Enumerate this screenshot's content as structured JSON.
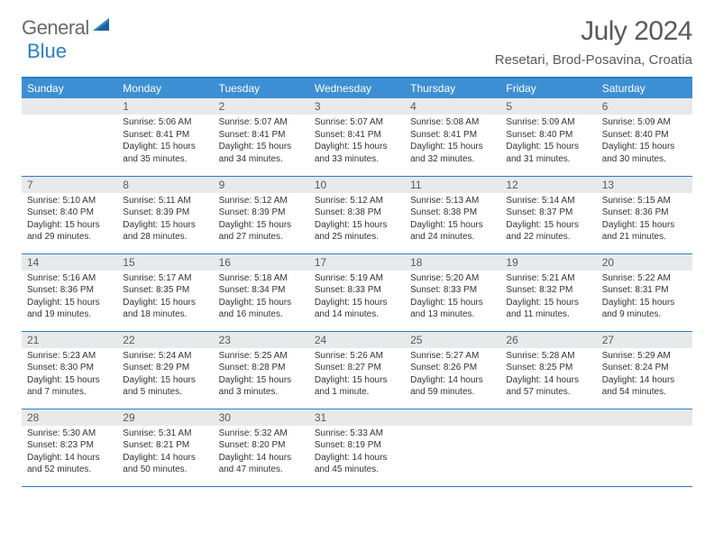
{
  "logo": {
    "gray": "General",
    "blue": "Blue"
  },
  "title": "July 2024",
  "location": "Resetari, Brod-Posavina, Croatia",
  "colors": {
    "header_bg": "#3d8fd4",
    "accent": "#2a7fc9",
    "daynum_bg": "#e8e9ea",
    "text": "#333333",
    "title_text": "#5a5a5a"
  },
  "day_names": [
    "Sunday",
    "Monday",
    "Tuesday",
    "Wednesday",
    "Thursday",
    "Friday",
    "Saturday"
  ],
  "weeks": [
    [
      {
        "n": "",
        "sr": "",
        "ss": "",
        "dl": ""
      },
      {
        "n": "1",
        "sr": "Sunrise: 5:06 AM",
        "ss": "Sunset: 8:41 PM",
        "dl": "Daylight: 15 hours and 35 minutes."
      },
      {
        "n": "2",
        "sr": "Sunrise: 5:07 AM",
        "ss": "Sunset: 8:41 PM",
        "dl": "Daylight: 15 hours and 34 minutes."
      },
      {
        "n": "3",
        "sr": "Sunrise: 5:07 AM",
        "ss": "Sunset: 8:41 PM",
        "dl": "Daylight: 15 hours and 33 minutes."
      },
      {
        "n": "4",
        "sr": "Sunrise: 5:08 AM",
        "ss": "Sunset: 8:41 PM",
        "dl": "Daylight: 15 hours and 32 minutes."
      },
      {
        "n": "5",
        "sr": "Sunrise: 5:09 AM",
        "ss": "Sunset: 8:40 PM",
        "dl": "Daylight: 15 hours and 31 minutes."
      },
      {
        "n": "6",
        "sr": "Sunrise: 5:09 AM",
        "ss": "Sunset: 8:40 PM",
        "dl": "Daylight: 15 hours and 30 minutes."
      }
    ],
    [
      {
        "n": "7",
        "sr": "Sunrise: 5:10 AM",
        "ss": "Sunset: 8:40 PM",
        "dl": "Daylight: 15 hours and 29 minutes."
      },
      {
        "n": "8",
        "sr": "Sunrise: 5:11 AM",
        "ss": "Sunset: 8:39 PM",
        "dl": "Daylight: 15 hours and 28 minutes."
      },
      {
        "n": "9",
        "sr": "Sunrise: 5:12 AM",
        "ss": "Sunset: 8:39 PM",
        "dl": "Daylight: 15 hours and 27 minutes."
      },
      {
        "n": "10",
        "sr": "Sunrise: 5:12 AM",
        "ss": "Sunset: 8:38 PM",
        "dl": "Daylight: 15 hours and 25 minutes."
      },
      {
        "n": "11",
        "sr": "Sunrise: 5:13 AM",
        "ss": "Sunset: 8:38 PM",
        "dl": "Daylight: 15 hours and 24 minutes."
      },
      {
        "n": "12",
        "sr": "Sunrise: 5:14 AM",
        "ss": "Sunset: 8:37 PM",
        "dl": "Daylight: 15 hours and 22 minutes."
      },
      {
        "n": "13",
        "sr": "Sunrise: 5:15 AM",
        "ss": "Sunset: 8:36 PM",
        "dl": "Daylight: 15 hours and 21 minutes."
      }
    ],
    [
      {
        "n": "14",
        "sr": "Sunrise: 5:16 AM",
        "ss": "Sunset: 8:36 PM",
        "dl": "Daylight: 15 hours and 19 minutes."
      },
      {
        "n": "15",
        "sr": "Sunrise: 5:17 AM",
        "ss": "Sunset: 8:35 PM",
        "dl": "Daylight: 15 hours and 18 minutes."
      },
      {
        "n": "16",
        "sr": "Sunrise: 5:18 AM",
        "ss": "Sunset: 8:34 PM",
        "dl": "Daylight: 15 hours and 16 minutes."
      },
      {
        "n": "17",
        "sr": "Sunrise: 5:19 AM",
        "ss": "Sunset: 8:33 PM",
        "dl": "Daylight: 15 hours and 14 minutes."
      },
      {
        "n": "18",
        "sr": "Sunrise: 5:20 AM",
        "ss": "Sunset: 8:33 PM",
        "dl": "Daylight: 15 hours and 13 minutes."
      },
      {
        "n": "19",
        "sr": "Sunrise: 5:21 AM",
        "ss": "Sunset: 8:32 PM",
        "dl": "Daylight: 15 hours and 11 minutes."
      },
      {
        "n": "20",
        "sr": "Sunrise: 5:22 AM",
        "ss": "Sunset: 8:31 PM",
        "dl": "Daylight: 15 hours and 9 minutes."
      }
    ],
    [
      {
        "n": "21",
        "sr": "Sunrise: 5:23 AM",
        "ss": "Sunset: 8:30 PM",
        "dl": "Daylight: 15 hours and 7 minutes."
      },
      {
        "n": "22",
        "sr": "Sunrise: 5:24 AM",
        "ss": "Sunset: 8:29 PM",
        "dl": "Daylight: 15 hours and 5 minutes."
      },
      {
        "n": "23",
        "sr": "Sunrise: 5:25 AM",
        "ss": "Sunset: 8:28 PM",
        "dl": "Daylight: 15 hours and 3 minutes."
      },
      {
        "n": "24",
        "sr": "Sunrise: 5:26 AM",
        "ss": "Sunset: 8:27 PM",
        "dl": "Daylight: 15 hours and 1 minute."
      },
      {
        "n": "25",
        "sr": "Sunrise: 5:27 AM",
        "ss": "Sunset: 8:26 PM",
        "dl": "Daylight: 14 hours and 59 minutes."
      },
      {
        "n": "26",
        "sr": "Sunrise: 5:28 AM",
        "ss": "Sunset: 8:25 PM",
        "dl": "Daylight: 14 hours and 57 minutes."
      },
      {
        "n": "27",
        "sr": "Sunrise: 5:29 AM",
        "ss": "Sunset: 8:24 PM",
        "dl": "Daylight: 14 hours and 54 minutes."
      }
    ],
    [
      {
        "n": "28",
        "sr": "Sunrise: 5:30 AM",
        "ss": "Sunset: 8:23 PM",
        "dl": "Daylight: 14 hours and 52 minutes."
      },
      {
        "n": "29",
        "sr": "Sunrise: 5:31 AM",
        "ss": "Sunset: 8:21 PM",
        "dl": "Daylight: 14 hours and 50 minutes."
      },
      {
        "n": "30",
        "sr": "Sunrise: 5:32 AM",
        "ss": "Sunset: 8:20 PM",
        "dl": "Daylight: 14 hours and 47 minutes."
      },
      {
        "n": "31",
        "sr": "Sunrise: 5:33 AM",
        "ss": "Sunset: 8:19 PM",
        "dl": "Daylight: 14 hours and 45 minutes."
      },
      {
        "n": "",
        "sr": "",
        "ss": "",
        "dl": ""
      },
      {
        "n": "",
        "sr": "",
        "ss": "",
        "dl": ""
      },
      {
        "n": "",
        "sr": "",
        "ss": "",
        "dl": ""
      }
    ]
  ]
}
